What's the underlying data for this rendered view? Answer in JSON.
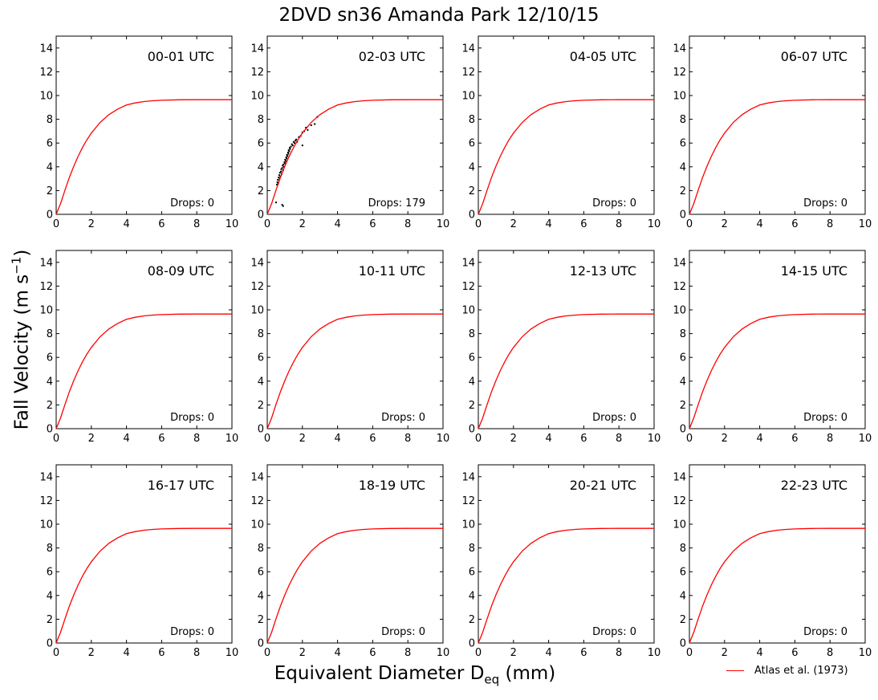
{
  "title": "2DVD sn36 Amanda Park 12/10/15",
  "ylabel": {
    "main": "Fall Velocity (m s",
    "sup": "−1",
    "tail": ")"
  },
  "xlabel": {
    "main": "Equivalent Diameter D",
    "sub": "eq",
    "tail": " (mm)"
  },
  "legend": {
    "label": "Atlas et al. (1973)",
    "color": "#ff0000"
  },
  "chart_data": {
    "type": "scatter",
    "xlim": [
      0,
      10
    ],
    "ylim": [
      0,
      15
    ],
    "xticks": [
      0,
      2,
      4,
      6,
      8,
      10
    ],
    "yticks": [
      0,
      2,
      4,
      6,
      8,
      10,
      12,
      14
    ],
    "grid": false,
    "legend_position": "bottom-right",
    "curve": {
      "name": "Atlas et al. (1973)",
      "color": "#ff0000",
      "x": [
        0.0,
        0.25,
        0.5,
        0.75,
        1.0,
        1.25,
        1.5,
        1.75,
        2.0,
        2.5,
        3.0,
        3.5,
        4.0,
        4.5,
        5.0,
        5.5,
        6.0,
        7.0,
        8.0,
        9.0,
        10.0
      ],
      "y": [
        0.0,
        0.91,
        2.04,
        3.1,
        4.05,
        4.89,
        5.63,
        6.28,
        6.84,
        7.74,
        8.39,
        8.86,
        9.2,
        9.38,
        9.49,
        9.56,
        9.6,
        9.64,
        9.65,
        9.65,
        9.65
      ]
    },
    "panels": [
      {
        "label": "00-01 UTC",
        "drops_text": "Drops: 0",
        "points": []
      },
      {
        "label": "02-03 UTC",
        "drops_text": "Drops: 179",
        "points": [
          [
            0.55,
            2.5
          ],
          [
            0.58,
            2.7
          ],
          [
            0.6,
            2.9
          ],
          [
            0.62,
            2.6
          ],
          [
            0.65,
            3.1
          ],
          [
            0.68,
            3.3
          ],
          [
            0.7,
            3.0
          ],
          [
            0.72,
            3.5
          ],
          [
            0.75,
            3.2
          ],
          [
            0.78,
            3.6
          ],
          [
            0.8,
            3.8
          ],
          [
            0.82,
            3.4
          ],
          [
            0.85,
            3.9
          ],
          [
            0.88,
            4.1
          ],
          [
            0.9,
            3.7
          ],
          [
            0.92,
            4.2
          ],
          [
            0.95,
            4.0
          ],
          [
            0.98,
            4.4
          ],
          [
            1.0,
            4.3
          ],
          [
            1.02,
            4.6
          ],
          [
            1.05,
            4.5
          ],
          [
            1.08,
            4.8
          ],
          [
            1.1,
            4.7
          ],
          [
            1.12,
            5.0
          ],
          [
            1.15,
            4.9
          ],
          [
            1.18,
            5.2
          ],
          [
            1.2,
            5.1
          ],
          [
            1.22,
            5.4
          ],
          [
            1.25,
            5.3
          ],
          [
            1.28,
            5.6
          ],
          [
            1.3,
            5.5
          ],
          [
            1.35,
            5.7
          ],
          [
            1.4,
            5.9
          ],
          [
            1.45,
            5.8
          ],
          [
            1.5,
            6.1
          ],
          [
            1.55,
            6.0
          ],
          [
            1.6,
            6.2
          ],
          [
            1.65,
            6.3
          ],
          [
            1.7,
            6.1
          ],
          [
            1.8,
            6.5
          ],
          [
            1.9,
            6.6
          ],
          [
            2.0,
            6.9
          ],
          [
            2.1,
            7.0
          ],
          [
            2.2,
            7.3
          ],
          [
            2.3,
            7.1
          ],
          [
            2.5,
            7.5
          ],
          [
            2.7,
            7.6
          ],
          [
            2.85,
            8.2
          ],
          [
            0.5,
            1.0
          ],
          [
            0.85,
            0.8
          ],
          [
            0.9,
            0.7
          ],
          [
            2.0,
            5.8
          ]
        ]
      },
      {
        "label": "04-05 UTC",
        "drops_text": "Drops: 0",
        "points": []
      },
      {
        "label": "06-07 UTC",
        "drops_text": "Drops: 0",
        "points": []
      },
      {
        "label": "08-09 UTC",
        "drops_text": "Drops: 0",
        "points": []
      },
      {
        "label": "10-11 UTC",
        "drops_text": "Drops: 0",
        "points": []
      },
      {
        "label": "12-13 UTC",
        "drops_text": "Drops: 0",
        "points": []
      },
      {
        "label": "14-15 UTC",
        "drops_text": "Drops: 0",
        "points": []
      },
      {
        "label": "16-17 UTC",
        "drops_text": "Drops: 0",
        "points": []
      },
      {
        "label": "18-19 UTC",
        "drops_text": "Drops: 0",
        "points": []
      },
      {
        "label": "20-21 UTC",
        "drops_text": "Drops: 0",
        "points": []
      },
      {
        "label": "22-23 UTC",
        "drops_text": "Drops: 0",
        "points": []
      }
    ]
  }
}
